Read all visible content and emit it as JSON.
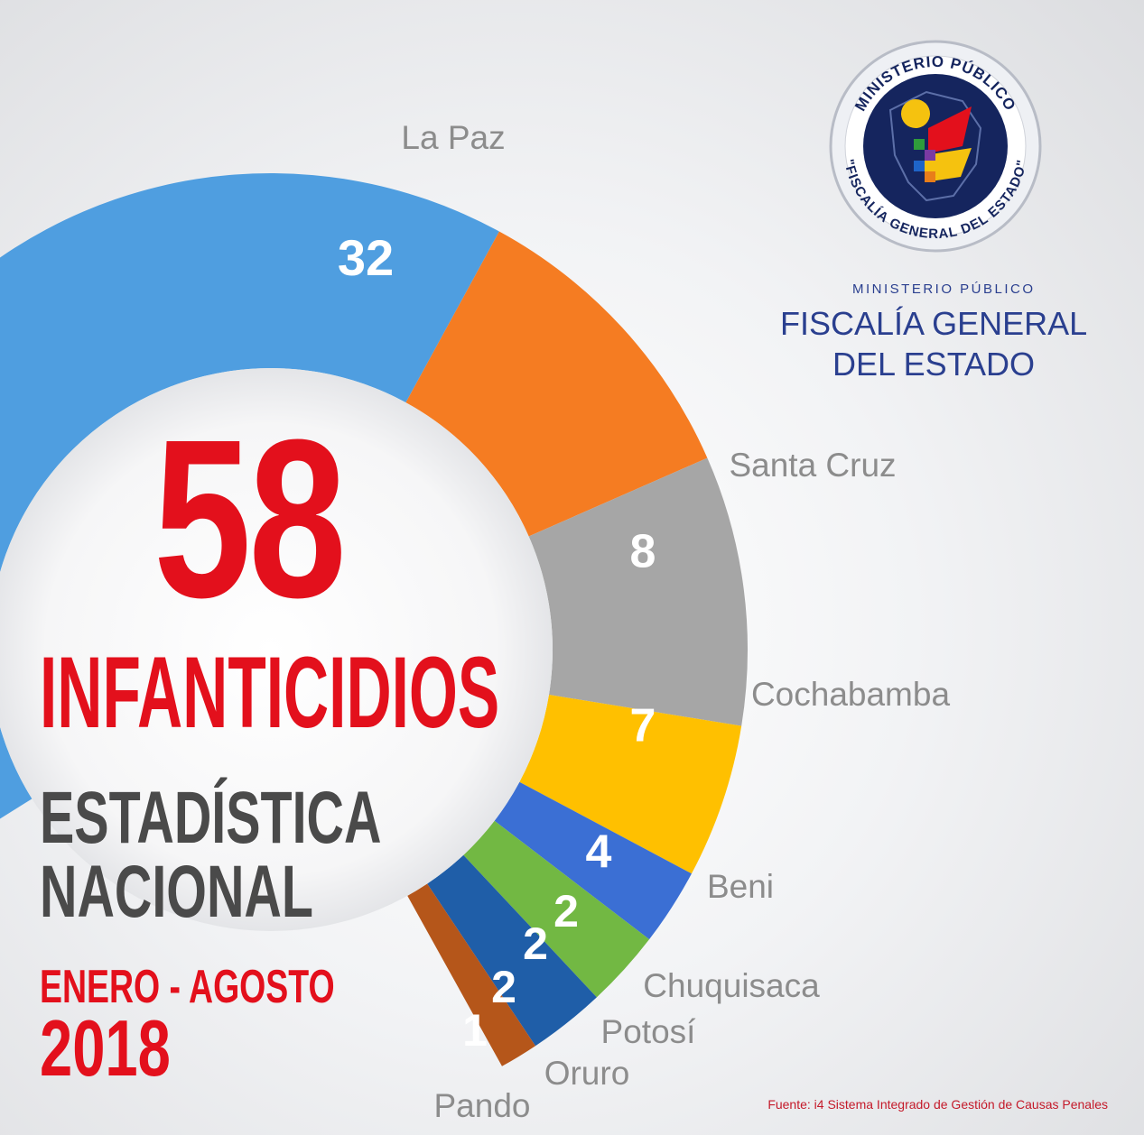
{
  "chart_data": {
    "type": "donut",
    "total": 58,
    "categories": [
      "La Paz",
      "Santa Cruz",
      "Cochabamba",
      "Beni",
      "Chuquisaca",
      "Potosí",
      "Oruro",
      "Pando"
    ],
    "values": [
      32,
      8,
      7,
      4,
      2,
      2,
      2,
      1
    ],
    "colors": [
      "#4f9ee0",
      "#f57c22",
      "#a6a6a6",
      "#ffc000",
      "#3b6fd4",
      "#72b843",
      "#1f5ea8",
      "#b5561a"
    ]
  },
  "headline": {
    "number": "58",
    "title": "INFANTICIDIOS",
    "subtitle_line1": "ESTADÍSTICA",
    "subtitle_line2": "NACIONAL",
    "period": "ENERO - AGOSTO",
    "year": "2018"
  },
  "organization": {
    "seal_top_text": "MINISTERIO PÚBLICO",
    "seal_bottom_text": "\"FISCALÍA GENERAL DEL ESTADO\"",
    "small_label": "MINISTERIO PÚBLICO",
    "name_line1": "FISCALÍA GENERAL",
    "name_line2": "DEL ESTADO"
  },
  "source": "Fuente: i4 Sistema Integrado de Gestión de Causas Penales",
  "colors": {
    "accent_red": "#e3101c",
    "navy": "#2a3f8f",
    "label_gray": "#8c8c8c"
  }
}
